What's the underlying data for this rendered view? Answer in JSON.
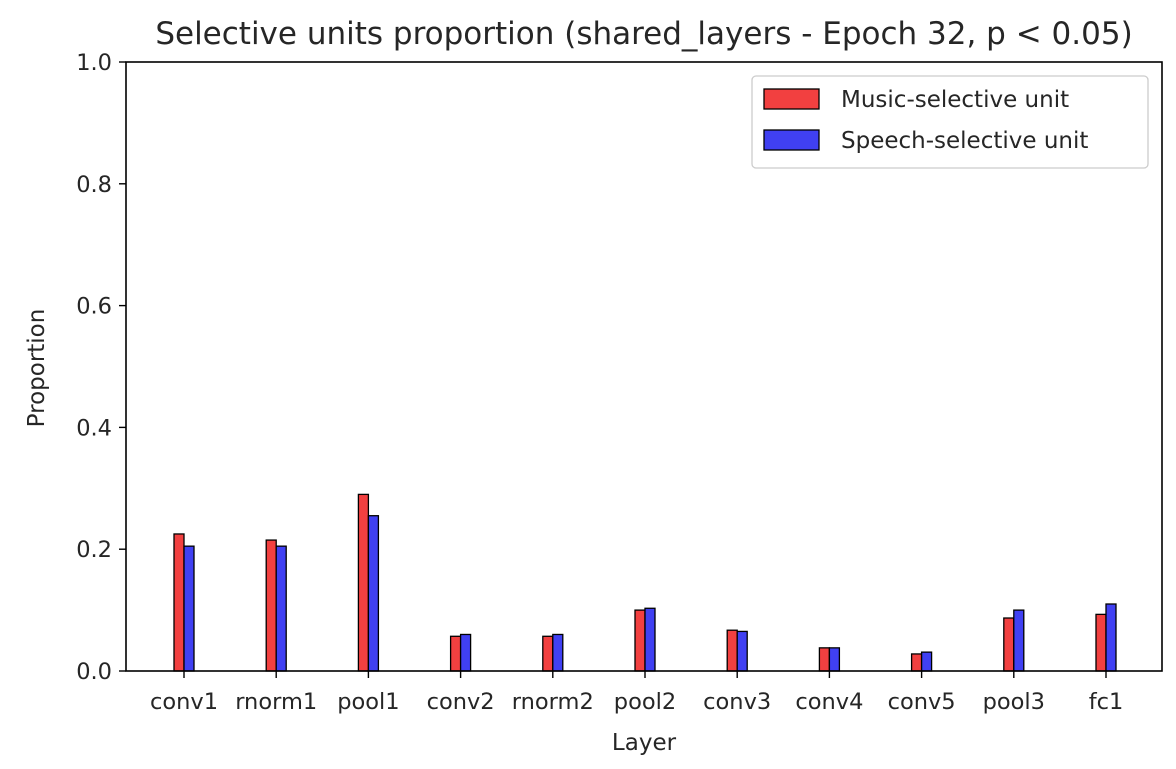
{
  "chart_data": {
    "type": "bar",
    "title": "Selective units proportion (shared_layers - Epoch 32, p < 0.05)",
    "xlabel": "Layer",
    "ylabel": "Proportion",
    "ylim": [
      0,
      1.0
    ],
    "yticks": [
      "0.0",
      "0.2",
      "0.4",
      "0.6",
      "0.8",
      "1.0"
    ],
    "grid": false,
    "legend_position": "top-right",
    "categories": [
      "conv1",
      "rnorm1",
      "pool1",
      "conv2",
      "rnorm2",
      "pool2",
      "conv3",
      "conv4",
      "conv5",
      "pool3",
      "fc1"
    ],
    "series": [
      {
        "name": "Music-selective unit",
        "color": "#f24040",
        "values": [
          0.225,
          0.215,
          0.29,
          0.057,
          0.057,
          0.1,
          0.067,
          0.038,
          0.028,
          0.087,
          0.093
        ]
      },
      {
        "name": "Speech-selective unit",
        "color": "#4040f2",
        "values": [
          0.205,
          0.205,
          0.255,
          0.06,
          0.06,
          0.103,
          0.065,
          0.038,
          0.031,
          0.1,
          0.11
        ]
      }
    ]
  }
}
